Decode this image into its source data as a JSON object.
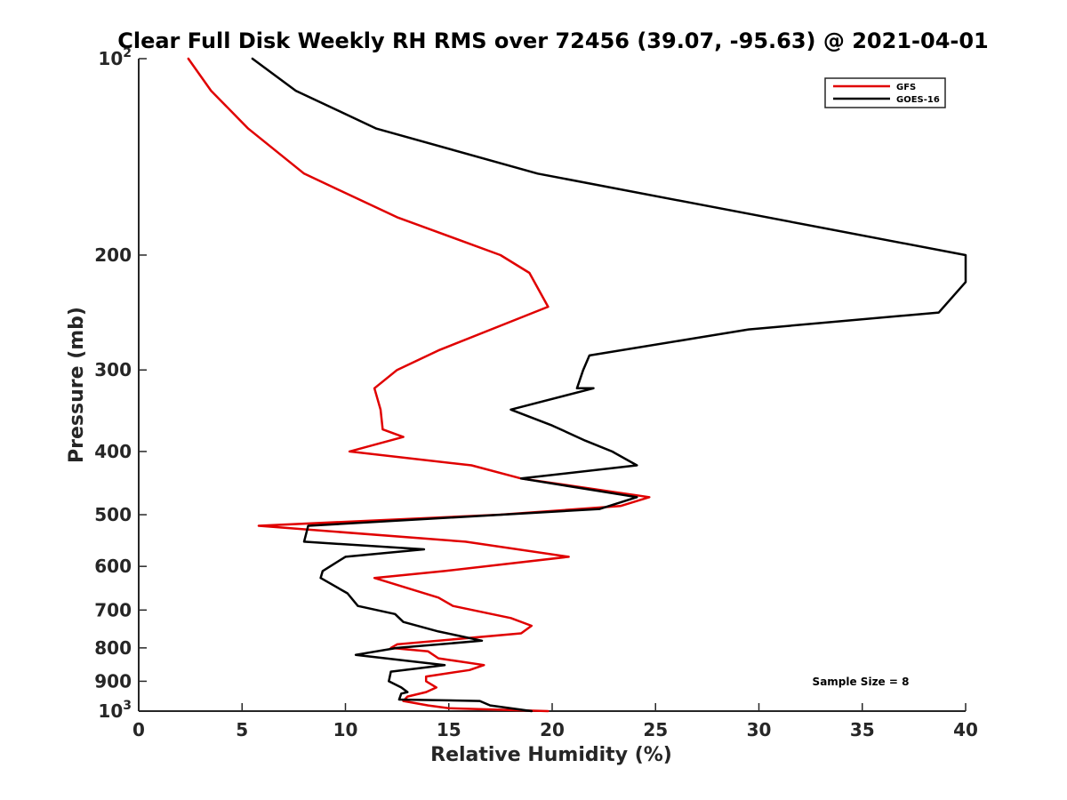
{
  "chart_data": {
    "type": "line",
    "title": "Clear Full Disk Weekly RH RMS over 72456 (39.07, -95.63) @ 2021-04-01",
    "xlabel": "Relative Humidity (%)",
    "ylabel": "Pressure (mb)",
    "xlim": [
      0,
      40
    ],
    "ylim": [
      100,
      1000
    ],
    "yscale": "log",
    "y_reversed": true,
    "grid": false,
    "xticks": [
      0,
      5,
      10,
      15,
      20,
      25,
      30,
      35,
      40
    ],
    "xtick_labels": [
      "0",
      "5",
      "10",
      "15",
      "20",
      "25",
      "30",
      "35",
      "40"
    ],
    "yticks": [
      {
        "value": 100,
        "base": "10",
        "exp": "2"
      },
      {
        "value": 200,
        "label": "200"
      },
      {
        "value": 300,
        "label": "300"
      },
      {
        "value": 400,
        "label": "400"
      },
      {
        "value": 500,
        "label": "500"
      },
      {
        "value": 600,
        "label": "600"
      },
      {
        "value": 700,
        "label": "700"
      },
      {
        "value": 800,
        "label": "800"
      },
      {
        "value": 900,
        "label": "900"
      },
      {
        "value": 1000,
        "base": "10",
        "exp": "3"
      }
    ],
    "legend_position": "top-right",
    "annotation": "Sample Size = 8",
    "series": [
      {
        "name": "GFS",
        "color": "#e00000",
        "x": [
          2.4,
          3.5,
          5.3,
          8.0,
          12.5,
          17.5,
          18.9,
          19.8,
          14.5,
          12.5,
          11.4,
          11.7,
          11.8,
          12.8,
          10.2,
          16.1,
          18.5,
          24.7,
          23.3,
          17.5,
          5.8,
          15.8,
          20.8,
          14.8,
          11.4,
          14.5,
          15.2,
          18.0,
          19.0,
          18.5,
          12.5,
          12.2,
          14.0,
          14.5,
          16.7,
          16.0,
          13.9,
          13.9,
          14.4,
          13.9,
          13.0,
          12.8,
          14.0,
          15.0,
          19.8
        ],
        "y": [
          100,
          112,
          128,
          150,
          175,
          200,
          213,
          240,
          280,
          300,
          320,
          345,
          370,
          380,
          400,
          420,
          440,
          470,
          485,
          500,
          520,
          550,
          580,
          610,
          625,
          670,
          690,
          720,
          740,
          760,
          790,
          800,
          810,
          830,
          850,
          865,
          885,
          900,
          920,
          935,
          950,
          965,
          980,
          990,
          1000
        ]
      },
      {
        "name": "GOES-16",
        "color": "#000000",
        "x": [
          5.5,
          7.6,
          11.5,
          19.3,
          40.0,
          40.0,
          38.7,
          29.5,
          21.8,
          21.5,
          21.2,
          22.0,
          18.0,
          20.0,
          21.6,
          22.9,
          24.1,
          18.5,
          24.1,
          22.3,
          8.2,
          8.0,
          13.8,
          10.0,
          8.9,
          8.8,
          10.1,
          10.6,
          12.4,
          12.8,
          14.5,
          16.6,
          12.5,
          10.5,
          14.8,
          12.2,
          12.1,
          12.7,
          13.0,
          12.7,
          12.6,
          16.5,
          17.0,
          19.0
        ],
        "y": [
          100,
          112,
          128,
          150,
          200,
          220,
          245,
          260,
          285,
          300,
          320,
          320,
          345,
          365,
          385,
          400,
          420,
          440,
          470,
          490,
          520,
          550,
          565,
          580,
          610,
          625,
          660,
          690,
          710,
          730,
          755,
          780,
          800,
          820,
          850,
          870,
          900,
          920,
          935,
          940,
          960,
          965,
          980,
          1000
        ]
      }
    ]
  }
}
